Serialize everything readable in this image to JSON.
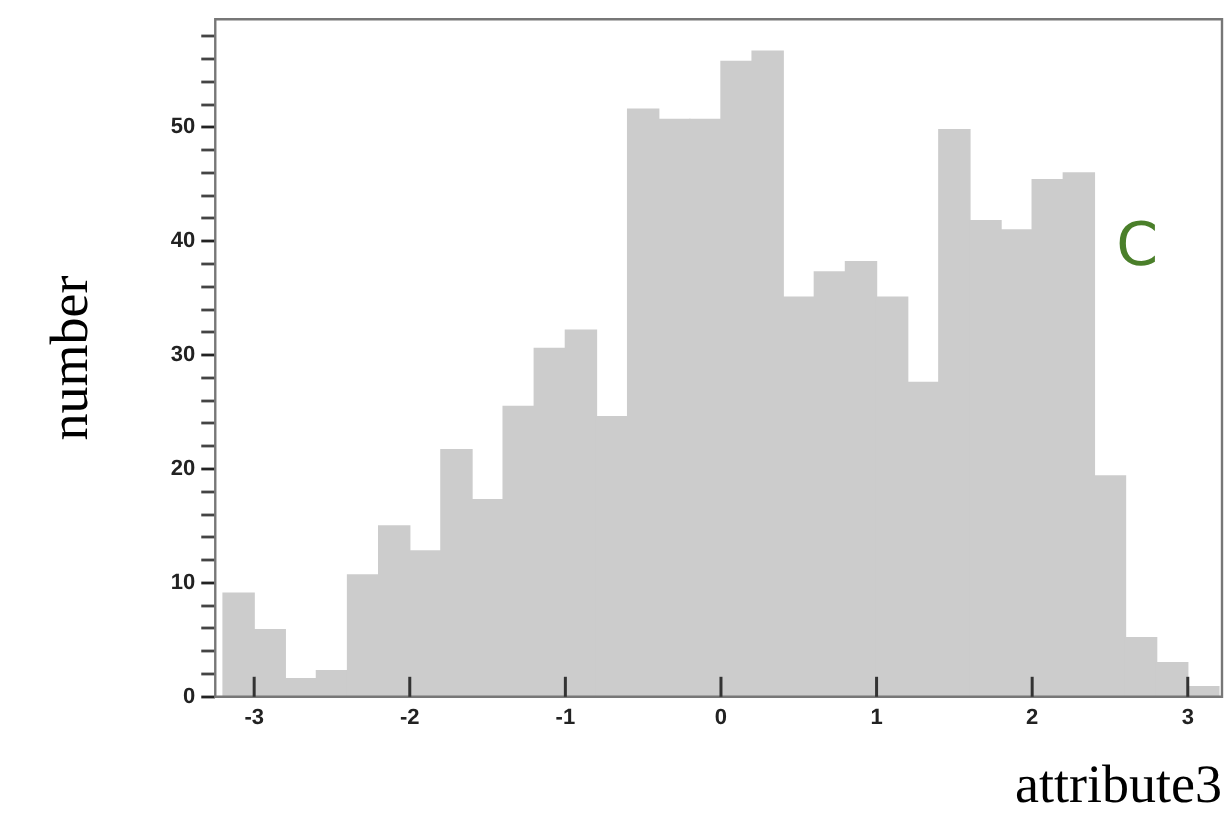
{
  "chart_data": {
    "type": "histogram",
    "xlabel": "attribute3",
    "ylabel": "number",
    "annotations": [
      "C"
    ],
    "bins": [
      -3.2,
      -3.0,
      -2.8,
      -2.6,
      -2.4,
      -2.2,
      -2.0,
      -1.8,
      -1.6,
      -1.4,
      -1.2,
      -1.0,
      -0.8,
      -0.6,
      -0.4,
      -0.2,
      0,
      0.2,
      0.4,
      0.6,
      0.8,
      1.0,
      1.2,
      1.4,
      1.6,
      1.8,
      2.0,
      2.2,
      2.4,
      2.6,
      2.8,
      3.0,
      3.2
    ],
    "values": [
      9.1,
      5.9,
      1.6,
      2.3,
      10.7,
      15.0,
      12.8,
      21.7,
      17.3,
      25.5,
      30.6,
      32.2,
      24.6,
      51.6,
      50.7,
      50.7,
      55.8,
      56.7,
      35.1,
      37.3,
      38.2,
      35.1,
      27.6,
      49.8,
      41.8,
      41.0,
      45.4,
      46.0,
      19.4,
      5.2,
      3.0,
      0.9
    ],
    "color": "#cccccc",
    "xlim": [
      -3.25,
      3.22
    ],
    "ylim": [
      0,
      59.5
    ],
    "xticks": [
      -3,
      -2,
      -1,
      0,
      1,
      2,
      3
    ],
    "yticks": [
      0,
      {
        "value": 2,
        "label": null
      },
      {
        "value": 4,
        "label": null
      },
      {
        "value": 6,
        "label": null
      },
      {
        "value": 8,
        "label": null
      },
      10,
      {
        "value": 12,
        "label": null
      },
      {
        "value": 14,
        "label": null
      },
      {
        "value": 16,
        "label": null
      },
      {
        "value": 18,
        "label": null
      },
      20,
      {
        "value": 22,
        "label": null
      },
      {
        "value": 24,
        "label": null
      },
      {
        "value": 26,
        "label": null
      },
      {
        "value": 28,
        "label": null
      },
      30,
      {
        "value": 32,
        "label": null
      },
      {
        "value": 34,
        "label": null
      },
      {
        "value": 36,
        "label": null
      },
      {
        "value": 38,
        "label": null
      },
      40,
      {
        "value": 42,
        "label": null
      },
      {
        "value": 44,
        "label": null
      },
      {
        "value": 46,
        "label": null
      },
      {
        "value": 48,
        "label": null
      },
      50,
      {
        "value": 52,
        "label": null
      },
      {
        "value": 54,
        "label": null
      },
      {
        "value": 56,
        "label": null
      },
      {
        "value": 58,
        "label": null
      }
    ],
    "grid": false,
    "legend": false
  }
}
